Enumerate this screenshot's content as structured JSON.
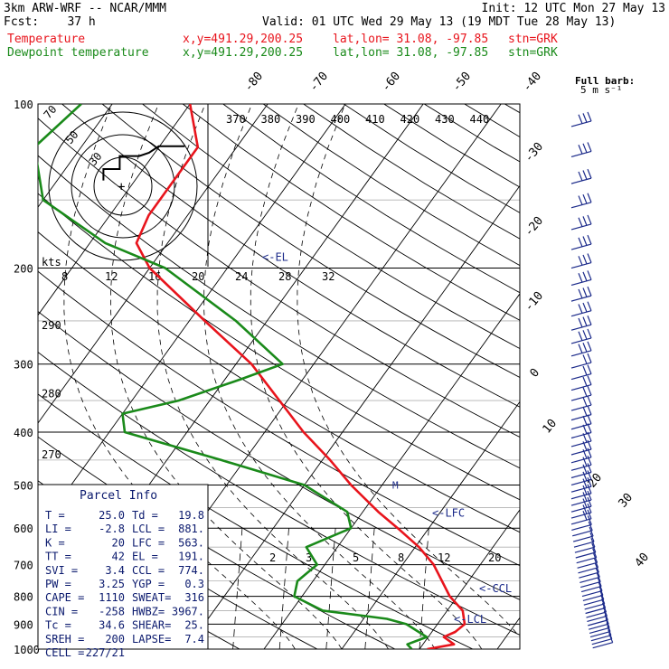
{
  "header": {
    "model": "3km ARW-WRF -- NCAR/MMM",
    "init": "Init: 12 UTC Mon 27 May 13",
    "fcst": "Fcst:    37 h",
    "valid": "Valid: 01 UTC Wed 29 May 13 (19 MDT Tue 28 May 13)",
    "temp_label": "Temperature",
    "dew_label": "Dewpoint temperature",
    "xy": "x,y=491.29,200.25",
    "latlon": "lat,lon= 31.08, -97.85",
    "stn": "stn=GRK"
  },
  "barb_legend": {
    "line1": "Full barb:",
    "line2": "5 m s⁻¹"
  },
  "hodograph": {
    "units": "kts",
    "ring_labels": [
      "30",
      "50",
      "70"
    ]
  },
  "parcel_info": {
    "title": "Parcel Info",
    "rows": [
      [
        "T    =",
        "25.0",
        "Td  =",
        "19.8"
      ],
      [
        "LI   =",
        "-2.8",
        "LCL =",
        "881."
      ],
      [
        "K    =",
        "20",
        "LFC =",
        "563."
      ],
      [
        "TT   =",
        "42",
        "EL  =",
        "191."
      ],
      [
        "SVI  =",
        "3.4",
        "CCL =",
        "774."
      ],
      [
        "PW   =",
        "3.25",
        "YGP =",
        "0.3"
      ],
      [
        "CAPE =",
        "1110",
        "SWEAT=",
        "316"
      ],
      [
        "CIN  =",
        "-258",
        "HWBZ=",
        "3967."
      ],
      [
        "Tc   =",
        "34.6",
        "SHEAR=",
        "25."
      ],
      [
        "SREH =",
        "200",
        "LAPSE=",
        "7.4"
      ],
      [
        "CELL =",
        "227/21",
        "",
        ""
      ]
    ]
  },
  "chart_data": {
    "type": "line",
    "title": "",
    "xlabel": "",
    "ylabel": "",
    "pressure_levels": [
      100,
      200,
      300,
      400,
      500,
      600,
      700,
      800,
      900,
      1000
    ],
    "isotherm_labels": [
      -80,
      -70,
      -60,
      -50,
      -40,
      -30,
      -20,
      -10,
      0,
      10,
      20,
      30,
      40
    ],
    "theta_labels": [
      370,
      380,
      390,
      400,
      410,
      420,
      430,
      440
    ],
    "mixing_ratio_labels": [
      2,
      3,
      5,
      8,
      12,
      20
    ],
    "theta_e_labels": [
      8,
      12,
      16,
      20,
      24,
      28,
      32
    ],
    "left_labels": [
      {
        "p": 255,
        "text": "290"
      },
      {
        "p": 340,
        "text": "280"
      },
      {
        "p": 440,
        "text": "270"
      }
    ],
    "series": [
      {
        "name": "Temperature",
        "color": "#e8141c",
        "points": [
          [
            1000,
            21
          ],
          [
            980,
            24
          ],
          [
            950,
            22
          ],
          [
            930,
            23
          ],
          [
            900,
            23.5
          ],
          [
            850,
            22
          ],
          [
            800,
            19
          ],
          [
            700,
            14
          ],
          [
            650,
            10.5
          ],
          [
            600,
            6
          ],
          [
            560,
            2
          ],
          [
            500,
            -4
          ],
          [
            450,
            -9
          ],
          [
            400,
            -15
          ],
          [
            300,
            -28
          ],
          [
            250,
            -38
          ],
          [
            200,
            -50
          ],
          [
            180,
            -54
          ],
          [
            160,
            -55
          ],
          [
            140,
            -55
          ],
          [
            120,
            -55
          ],
          [
            100,
            -60
          ]
        ]
      },
      {
        "name": "Dewpoint temperature",
        "color": "#1a8a1a",
        "points": [
          [
            1000,
            19
          ],
          [
            980,
            18
          ],
          [
            950,
            19.8
          ],
          [
            900,
            16
          ],
          [
            880,
            13
          ],
          [
            850,
            4
          ],
          [
            800,
            -1
          ],
          [
            750,
            -2
          ],
          [
            700,
            -1
          ],
          [
            650,
            -4
          ],
          [
            600,
            0
          ],
          [
            560,
            -2
          ],
          [
            500,
            -10
          ],
          [
            450,
            -23
          ],
          [
            400,
            -38
          ],
          [
            370,
            -40
          ],
          [
            350,
            -34
          ],
          [
            320,
            -28
          ],
          [
            300,
            -24
          ],
          [
            250,
            -34
          ],
          [
            200,
            -48
          ],
          [
            180,
            -58
          ],
          [
            150,
            -70
          ],
          [
            120,
            -76
          ],
          [
            100,
            -74
          ]
        ]
      }
    ],
    "levels": [
      {
        "name": "EL",
        "label": "<-EL",
        "p": 191
      },
      {
        "name": "LFC",
        "label": "<-LFC",
        "p": 563
      },
      {
        "name": "CCL",
        "label": "<-CCL",
        "p": 774
      },
      {
        "name": "LCL",
        "label": "<-LCL",
        "p": 881
      }
    ],
    "hodograph_trace": [
      [
        -12,
        12
      ],
      [
        -12,
        5
      ],
      [
        -2,
        5
      ],
      [
        -2,
        -3
      ],
      [
        10,
        -3
      ],
      [
        16,
        -5
      ],
      [
        22,
        -9
      ],
      [
        35,
        -9
      ],
      [
        38,
        -9
      ]
    ]
  }
}
